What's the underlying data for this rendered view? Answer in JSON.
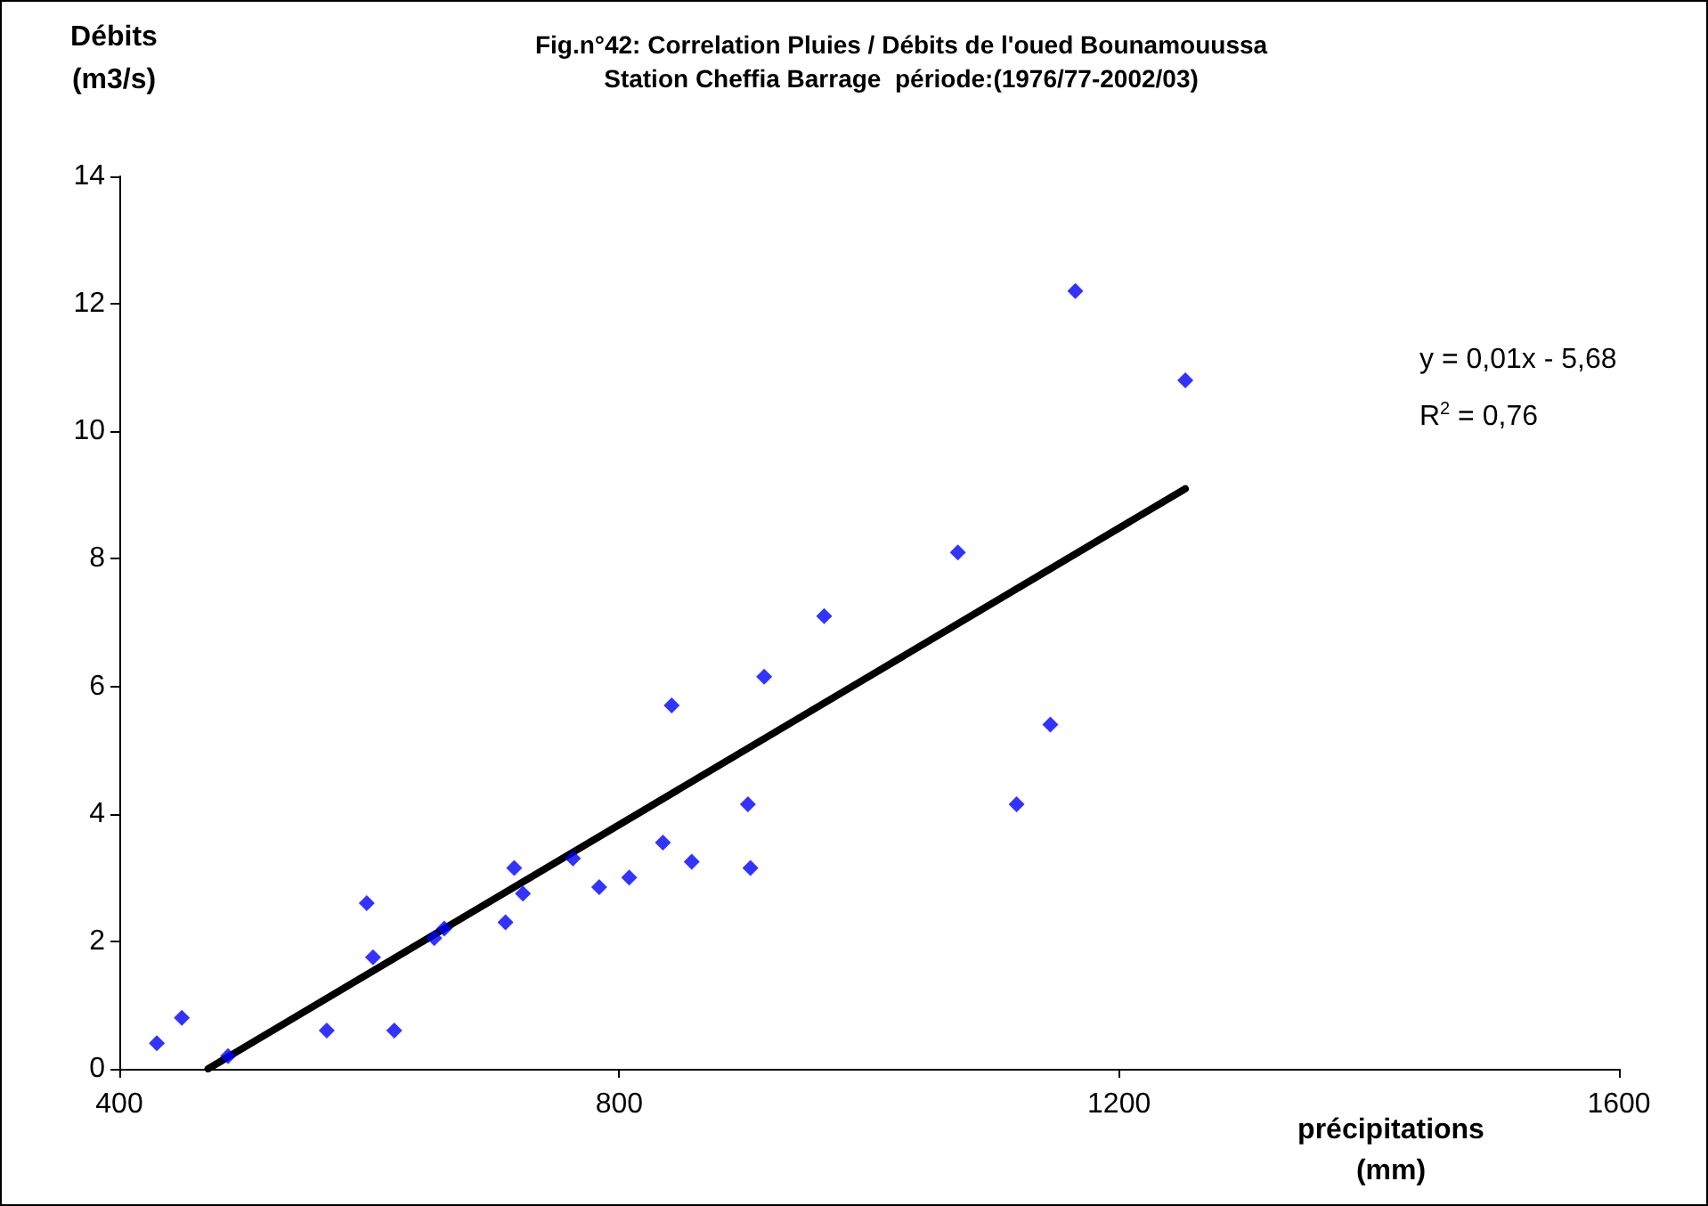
{
  "chart_data": {
    "type": "scatter",
    "title": "Fig.n°42: Correlation Pluies / Débits de l'oued Bounamouussa",
    "subtitle": "Station Cheffia Barrage  période:(1976/77-2002/03)",
    "xlabel": "précipitations\n(mm)",
    "ylabel": "Débits\n(m3/s)",
    "xlim": [
      400,
      1600
    ],
    "xticks": [
      400,
      800,
      1200,
      1600
    ],
    "ylim": [
      0,
      14
    ],
    "yticks": [
      0,
      2,
      4,
      6,
      8,
      10,
      12,
      14
    ],
    "grid": false,
    "marker": "diamond",
    "series": [
      {
        "color": "#0000ff",
        "x": [
          430,
          450,
          487,
          566,
          598,
          603,
          620,
          652,
          660,
          709,
          716,
          723,
          763,
          784,
          808,
          835,
          842,
          858,
          903,
          905,
          916,
          964,
          1071,
          1118,
          1145,
          1165,
          1253
        ],
        "values": [
          0.4,
          0.8,
          0.2,
          0.6,
          2.6,
          1.75,
          0.6,
          2.05,
          2.2,
          2.3,
          3.15,
          2.75,
          3.3,
          2.85,
          3.0,
          3.55,
          5.7,
          3.25,
          4.15,
          3.15,
          6.15,
          7.1,
          8.1,
          4.15,
          5.4,
          12.2,
          10.8
        ]
      },
      {
        "type": "line",
        "color": "#000000",
        "marker": "none",
        "x": [
          471,
          1253
        ],
        "values": [
          0,
          9.1
        ]
      }
    ],
    "annotations": [
      "y = 0,01x - 5,68",
      "R$^{2}$ = 0,76"
    ]
  }
}
